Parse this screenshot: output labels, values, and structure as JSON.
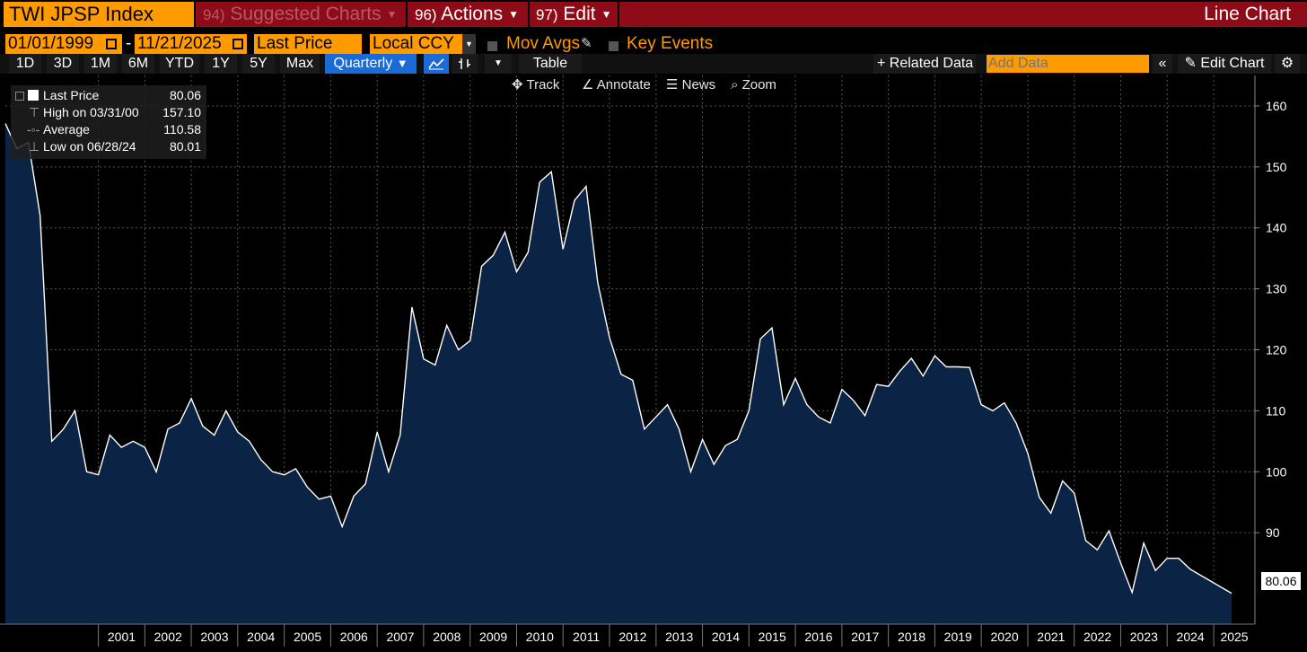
{
  "header": {
    "ticker": "TWI JPSP Index",
    "suggested": {
      "num": "94)",
      "label": "Suggested Charts"
    },
    "actions": {
      "num": "96)",
      "label": "Actions"
    },
    "edit": {
      "num": "97)",
      "label": "Edit"
    },
    "chart_type": "Line Chart"
  },
  "options": {
    "start_date": "01/01/1999",
    "dash": "-",
    "end_date": "11/21/2025",
    "field": "Last Price",
    "currency": "Local CCY",
    "mov_avgs": "Mov Avgs",
    "key_events": "Key Events"
  },
  "ranges": [
    "1D",
    "3D",
    "1M",
    "6M",
    "YTD",
    "1Y",
    "5Y",
    "Max"
  ],
  "frequency": "Quarterly",
  "toolbar": {
    "table": "Table",
    "related": "+ Related Data",
    "add_data_placeholder": "Add Data",
    "edit_chart": "Edit Chart"
  },
  "tools": {
    "track": "Track",
    "annotate": "Annotate",
    "news": "News",
    "zoom": "Zoom"
  },
  "legend": {
    "last_label": "Last Price",
    "last_value": "80.06",
    "high_label": "High on 03/31/00",
    "high_value": "157.10",
    "avg_label": "Average",
    "avg_value": "110.58",
    "low_label": "Low on 06/28/24",
    "low_value": "80.01"
  },
  "colors": {
    "accent": "#ff9a00",
    "redbar": "#8e0b18",
    "area": "#0b2344",
    "selected": "#1a6bd6"
  },
  "chart_data": {
    "type": "area",
    "series": [
      {
        "name": "Last Price",
        "values": [
          157.1,
          153,
          154,
          142,
          105,
          107,
          110,
          100,
          99.5,
          106,
          104,
          105,
          104,
          100,
          107,
          108,
          112,
          107.5,
          106,
          110,
          106.5,
          105,
          102,
          100,
          99.5,
          100.5,
          97.5,
          95.5,
          96,
          91,
          96,
          98,
          106.5,
          100,
          106,
          127,
          118.5,
          117.5,
          124,
          120,
          121.5,
          133.7,
          135.5,
          139.3,
          132.8,
          136,
          147.5,
          149.2,
          136.5,
          144.5,
          146.8,
          131,
          122,
          116,
          115,
          107,
          109,
          111,
          107,
          100,
          105.3,
          101.2,
          104.3,
          105.3,
          110,
          121.8,
          123.6,
          111,
          115.3,
          111,
          109,
          108,
          113.5,
          111.7,
          109.2,
          114.3,
          114,
          116.5,
          118.6,
          115.7,
          119,
          117.2,
          117.2,
          117.1,
          111,
          110,
          111.3,
          108,
          103,
          95.8,
          93.2,
          98.5,
          96.5,
          88.7,
          87.2,
          90.3,
          85,
          80.2,
          88.3,
          83.8,
          85.8,
          85.8,
          84,
          80.06
        ]
      }
    ],
    "x_start": "1999-01-01",
    "x_end": "2025-11-21",
    "frequency": "quarterly",
    "x_tick_labels": [
      "2001",
      "2002",
      "2003",
      "2004",
      "2005",
      "2006",
      "2007",
      "2008",
      "2009",
      "2010",
      "2011",
      "2012",
      "2013",
      "2014",
      "2015",
      "2016",
      "2017",
      "2018",
      "2019",
      "2020",
      "2021",
      "2022",
      "2023",
      "2024",
      "2025"
    ],
    "y_ticks": [
      90,
      100,
      110,
      120,
      130,
      140,
      150,
      160
    ],
    "ylim": [
      75,
      165
    ],
    "last_value_label": "80.06",
    "grid": true,
    "y_axis_side": "right",
    "legend_position": "top-left"
  }
}
